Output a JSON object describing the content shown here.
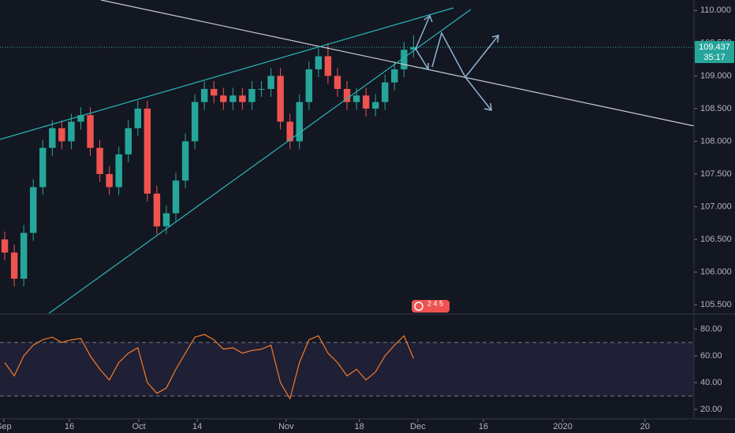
{
  "chart_data": [
    {
      "type": "candlestick",
      "x": [
        1,
        3,
        5,
        7,
        9,
        11,
        13,
        15,
        17,
        19,
        21,
        23,
        25,
        27,
        29,
        31,
        33,
        35,
        37,
        39,
        41,
        43,
        45,
        47,
        49,
        51,
        53,
        55,
        57,
        59,
        61,
        63,
        65,
        67,
        69,
        71,
        73,
        75,
        77,
        79,
        81,
        83,
        85,
        87
      ],
      "open": [
        106.5,
        106.3,
        105.9,
        106.6,
        107.3,
        107.9,
        108.2,
        108.0,
        108.3,
        108.4,
        107.9,
        107.5,
        107.3,
        107.8,
        108.2,
        108.5,
        107.2,
        106.7,
        106.9,
        107.4,
        108.0,
        108.6,
        108.8,
        108.7,
        108.6,
        108.7,
        108.6,
        108.8,
        108.8,
        109.0,
        108.3,
        108.0,
        108.6,
        109.1,
        109.3,
        109.0,
        108.8,
        108.6,
        108.7,
        108.5,
        108.6,
        108.9,
        109.1,
        109.4
      ],
      "high": [
        106.62,
        106.42,
        106.72,
        107.42,
        108.02,
        108.32,
        108.32,
        108.42,
        108.52,
        108.52,
        108.02,
        107.62,
        107.92,
        108.32,
        108.62,
        108.62,
        107.32,
        107.02,
        107.52,
        108.12,
        108.72,
        108.92,
        108.92,
        108.82,
        108.82,
        108.82,
        108.92,
        108.92,
        109.12,
        109.12,
        108.42,
        108.72,
        109.22,
        109.42,
        109.5,
        109.12,
        108.92,
        108.82,
        108.82,
        108.72,
        109.02,
        109.22,
        109.52,
        109.62
      ],
      "low": [
        106.18,
        105.78,
        105.78,
        106.48,
        107.18,
        107.78,
        107.88,
        107.88,
        108.18,
        107.78,
        107.38,
        107.18,
        107.18,
        107.68,
        108.08,
        107.08,
        106.58,
        106.58,
        106.78,
        107.28,
        107.88,
        108.48,
        108.58,
        108.48,
        108.48,
        108.48,
        108.48,
        108.68,
        108.68,
        108.18,
        107.88,
        107.88,
        108.48,
        108.98,
        108.88,
        108.68,
        108.48,
        108.48,
        108.38,
        108.38,
        108.48,
        108.78,
        108.98,
        109.28
      ],
      "close": [
        106.3,
        105.9,
        106.6,
        107.3,
        107.9,
        108.2,
        108.0,
        108.3,
        108.4,
        107.9,
        107.5,
        107.3,
        107.8,
        108.2,
        108.5,
        107.2,
        106.7,
        106.9,
        107.4,
        108.0,
        108.6,
        108.8,
        108.7,
        108.6,
        108.7,
        108.6,
        108.8,
        108.8,
        109.0,
        108.3,
        108.0,
        108.6,
        109.1,
        109.3,
        109.0,
        108.8,
        108.6,
        108.7,
        108.5,
        108.6,
        108.9,
        109.1,
        109.4,
        109.44
      ],
      "up_color": "#26a69a",
      "down_color": "#ef5350",
      "xlim": [
        0,
        146
      ],
      "xticks": [
        {
          "value": 0.8,
          "label": "Sep"
        },
        {
          "value": 14.6,
          "label": "16"
        },
        {
          "value": 29.2,
          "label": "Oct"
        },
        {
          "value": 41.5,
          "label": "14"
        },
        {
          "value": 60.2,
          "label": "Nov"
        },
        {
          "value": 75.6,
          "label": "18"
        },
        {
          "value": 87.9,
          "label": "Dec"
        },
        {
          "value": 101.7,
          "label": "16"
        },
        {
          "value": 118.4,
          "label": "2020"
        },
        {
          "value": 135.7,
          "label": "20"
        }
      ],
      "ylim": [
        105.37,
        110.16
      ],
      "yticks": [
        {
          "value": 110,
          "label": "110.000"
        },
        {
          "value": 109.5,
          "label": "109.500"
        },
        {
          "value": 109,
          "label": "109.000"
        },
        {
          "value": 108.5,
          "label": "108.500"
        },
        {
          "value": 108,
          "label": "108.000"
        },
        {
          "value": 107.5,
          "label": "107.500"
        },
        {
          "value": 107,
          "label": "107.000"
        },
        {
          "value": 106.5,
          "label": "106.500"
        },
        {
          "value": 106,
          "label": "106.000"
        },
        {
          "value": 105.5,
          "label": "105.500"
        }
      ],
      "last_price": {
        "value": 109.437,
        "label": "109.437"
      },
      "countdown": "35:17",
      "badge": "2 4 5"
    },
    {
      "type": "line",
      "x": [
        1,
        3,
        5,
        7,
        9,
        11,
        13,
        15,
        17,
        19,
        21,
        23,
        25,
        27,
        29,
        31,
        33,
        35,
        37,
        39,
        41,
        43,
        45,
        47,
        49,
        51,
        53,
        55,
        57,
        59,
        61,
        63,
        65,
        67,
        69,
        71,
        73,
        75,
        77,
        79,
        81,
        83,
        85,
        87
      ],
      "values": [
        55,
        45,
        60,
        68,
        72,
        74,
        70,
        72,
        73,
        60,
        50,
        42,
        55,
        62,
        66,
        40,
        32,
        36,
        50,
        62,
        74,
        76,
        72,
        65,
        66,
        62,
        64,
        65,
        68,
        40,
        28,
        55,
        72,
        75,
        62,
        55,
        45,
        50,
        42,
        48,
        60,
        68,
        75,
        58
      ],
      "color": "#f57c2a",
      "xlim": [
        0,
        146
      ],
      "ylim": [
        14.1,
        90.6
      ],
      "yticks": [
        {
          "value": 80,
          "label": "80.00"
        },
        {
          "value": 60,
          "label": "60.00"
        },
        {
          "value": 40,
          "label": "40.00"
        },
        {
          "value": 20,
          "label": "20.00"
        }
      ],
      "upper_band": 70,
      "lower_band": 30
    }
  ]
}
